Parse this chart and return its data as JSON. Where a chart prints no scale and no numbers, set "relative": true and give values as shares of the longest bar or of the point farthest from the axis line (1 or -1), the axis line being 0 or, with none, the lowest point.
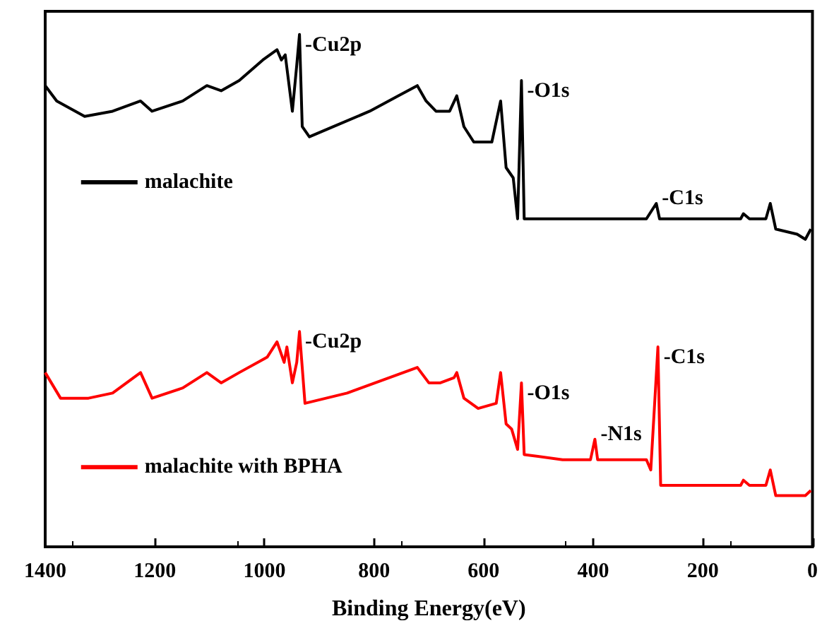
{
  "chart_data": {
    "type": "line",
    "relative": true,
    "xlabel": "Binding Energy(eV)",
    "xlim": [
      1400,
      0
    ],
    "xticks": [
      1400,
      1200,
      1000,
      800,
      600,
      400,
      200,
      0
    ],
    "legend": "left",
    "grid": false,
    "marker": "none",
    "series": [
      {
        "name": "malachite",
        "color": "#000000",
        "x": [
          1400,
          1379,
          1328,
          1277,
          1226,
          1205,
          1149,
          1105,
          1079,
          1046,
          1003,
          977,
          969,
          962,
          949,
          941,
          936,
          931,
          918,
          874,
          808,
          756,
          721,
          705,
          687,
          662,
          649,
          636,
          618,
          585,
          569,
          559,
          546,
          538,
          531,
          526,
          456,
          372,
          303,
          285,
          279,
          200,
          131,
          126,
          115,
          85,
          77,
          67,
          28,
          13,
          3
        ],
        "values": [
          0.9,
          0.87,
          0.84,
          0.85,
          0.87,
          0.85,
          0.87,
          0.9,
          0.89,
          0.91,
          0.95,
          0.97,
          0.95,
          0.96,
          0.85,
          0.94,
          1.0,
          0.82,
          0.8,
          0.82,
          0.85,
          0.88,
          0.9,
          0.87,
          0.85,
          0.85,
          0.88,
          0.82,
          0.79,
          0.79,
          0.87,
          0.74,
          0.72,
          0.64,
          0.91,
          0.64,
          0.64,
          0.64,
          0.64,
          0.67,
          0.64,
          0.64,
          0.64,
          0.65,
          0.64,
          0.64,
          0.67,
          0.62,
          0.61,
          0.6,
          0.62
        ]
      },
      {
        "name": "malachite with BPHA",
        "color": "#ff0000",
        "x": [
          1400,
          1372,
          1321,
          1277,
          1226,
          1205,
          1149,
          1105,
          1079,
          1046,
          995,
          977,
          964,
          959,
          949,
          941,
          936,
          926,
          849,
          721,
          700,
          679,
          654,
          649,
          636,
          610,
          577,
          569,
          559,
          549,
          538,
          531,
          526,
          456,
          405,
          397,
          392,
          303,
          295,
          282,
          277,
          200,
          131,
          126,
          115,
          85,
          77,
          67,
          13,
          3
        ],
        "values": [
          0.34,
          0.29,
          0.29,
          0.3,
          0.34,
          0.29,
          0.31,
          0.34,
          0.32,
          0.34,
          0.37,
          0.4,
          0.36,
          0.39,
          0.32,
          0.36,
          0.42,
          0.28,
          0.3,
          0.35,
          0.32,
          0.32,
          0.33,
          0.34,
          0.29,
          0.27,
          0.28,
          0.34,
          0.24,
          0.23,
          0.19,
          0.32,
          0.18,
          0.17,
          0.17,
          0.21,
          0.17,
          0.17,
          0.15,
          0.39,
          0.12,
          0.12,
          0.12,
          0.13,
          0.12,
          0.12,
          0.15,
          0.1,
          0.1,
          0.11
        ]
      }
    ],
    "annotations": [
      {
        "text": "-Cu2p",
        "x": 936,
        "y": 1.0
      },
      {
        "text": "-O1s",
        "x": 531,
        "y": 0.91
      },
      {
        "text": "-C1s",
        "x": 285,
        "y": 0.67
      },
      {
        "text": "-Cu2p",
        "x": 936,
        "y": 0.42
      },
      {
        "text": "-O1s",
        "x": 531,
        "y": 0.32
      },
      {
        "text": "-N1s",
        "x": 397,
        "y": 0.21
      },
      {
        "text": "-C1s",
        "x": 282,
        "y": 0.39
      }
    ]
  }
}
